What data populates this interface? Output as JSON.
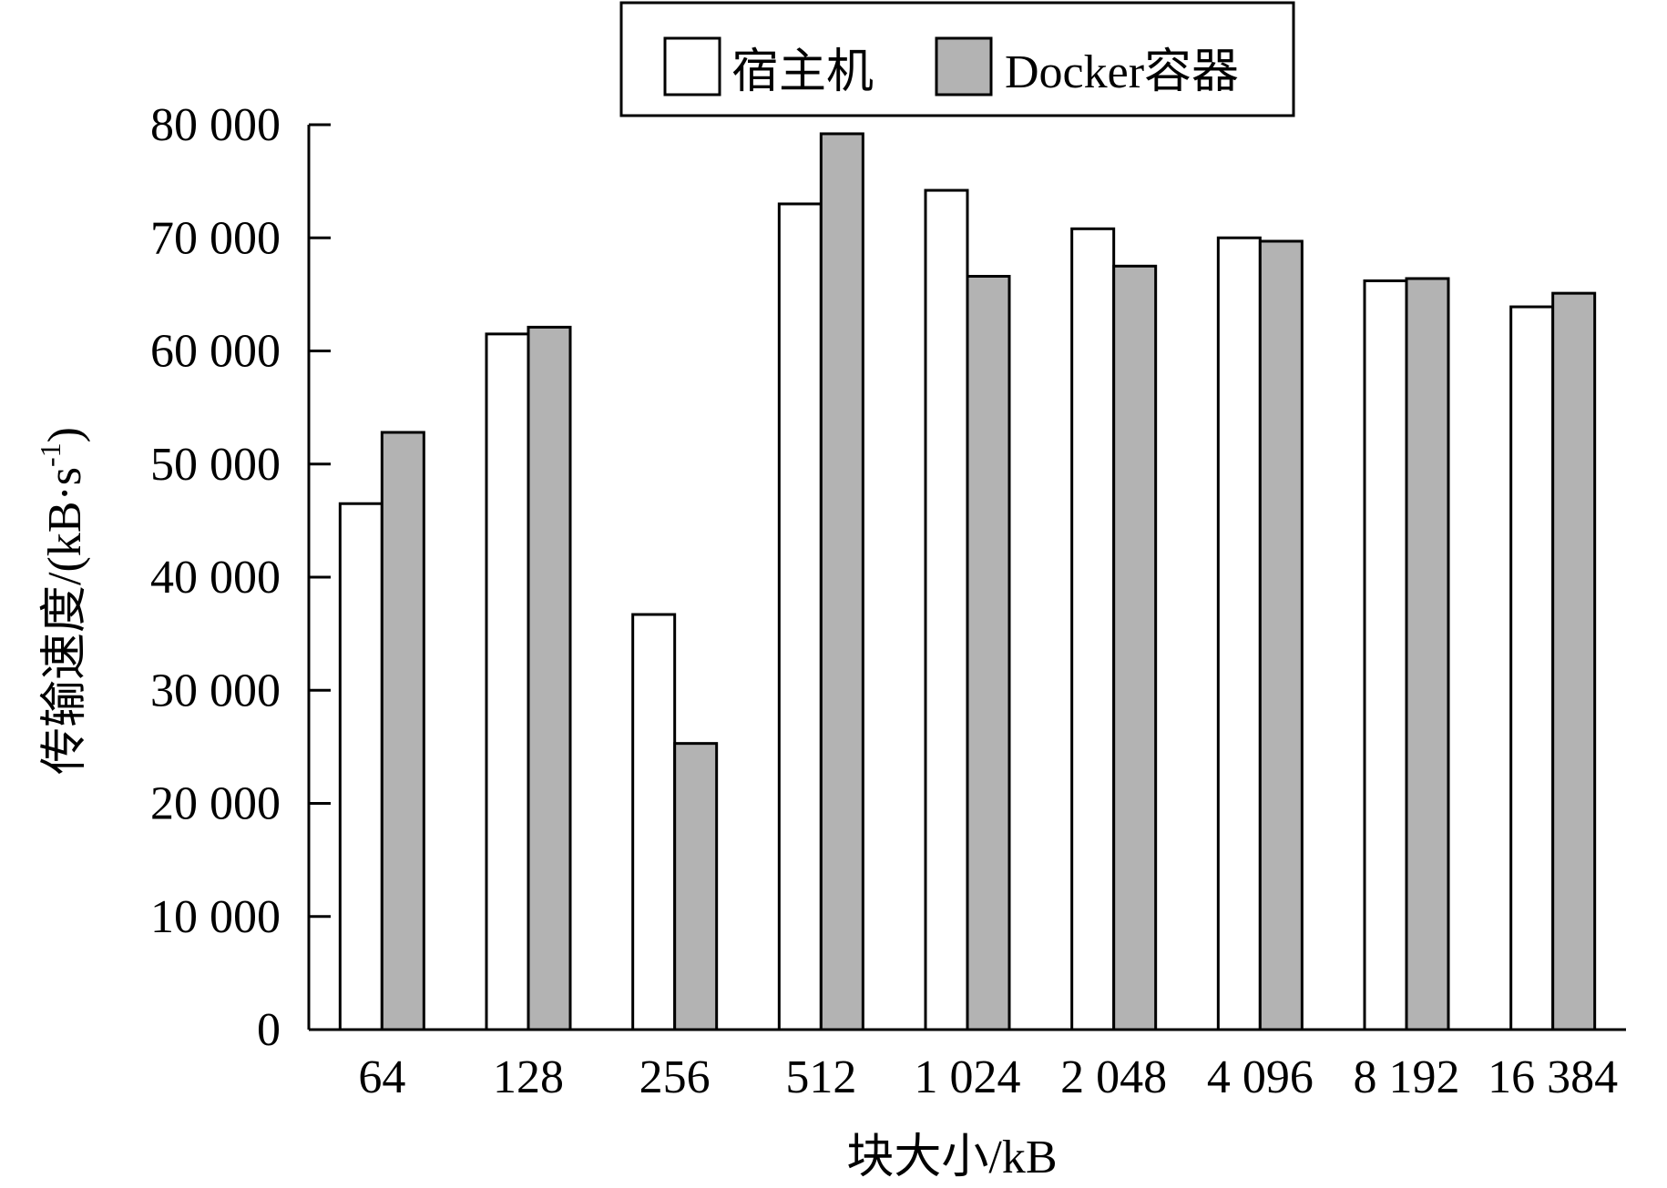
{
  "chart_data": {
    "type": "bar",
    "title": "",
    "xlabel": "块大小/kB",
    "ylabel_main": "传输速度/(kB·s",
    "ylabel_sup": "-1",
    "ylabel_close": ")",
    "ylim": [
      0,
      80000
    ],
    "yticks": [
      0,
      10000,
      20000,
      30000,
      40000,
      50000,
      60000,
      70000,
      80000
    ],
    "ytick_labels": [
      "0",
      "10 000",
      "20 000",
      "30 000",
      "40 000",
      "50 000",
      "60 000",
      "70 000",
      "80 000"
    ],
    "categories": [
      "64",
      "128",
      "256",
      "512",
      "1 024",
      "2 048",
      "4 096",
      "8 192",
      "16 384"
    ],
    "legend_position": "top-center",
    "grid": false,
    "series": [
      {
        "name": "宿主机",
        "color": "#ffffff",
        "values": [
          46500,
          61500,
          36700,
          73000,
          74200,
          70800,
          70000,
          66200,
          63900
        ]
      },
      {
        "name": "Docker容器",
        "color": "#b3b3b3",
        "values": [
          52800,
          62100,
          25300,
          79200,
          66600,
          67500,
          69700,
          66400,
          65100
        ]
      }
    ]
  }
}
